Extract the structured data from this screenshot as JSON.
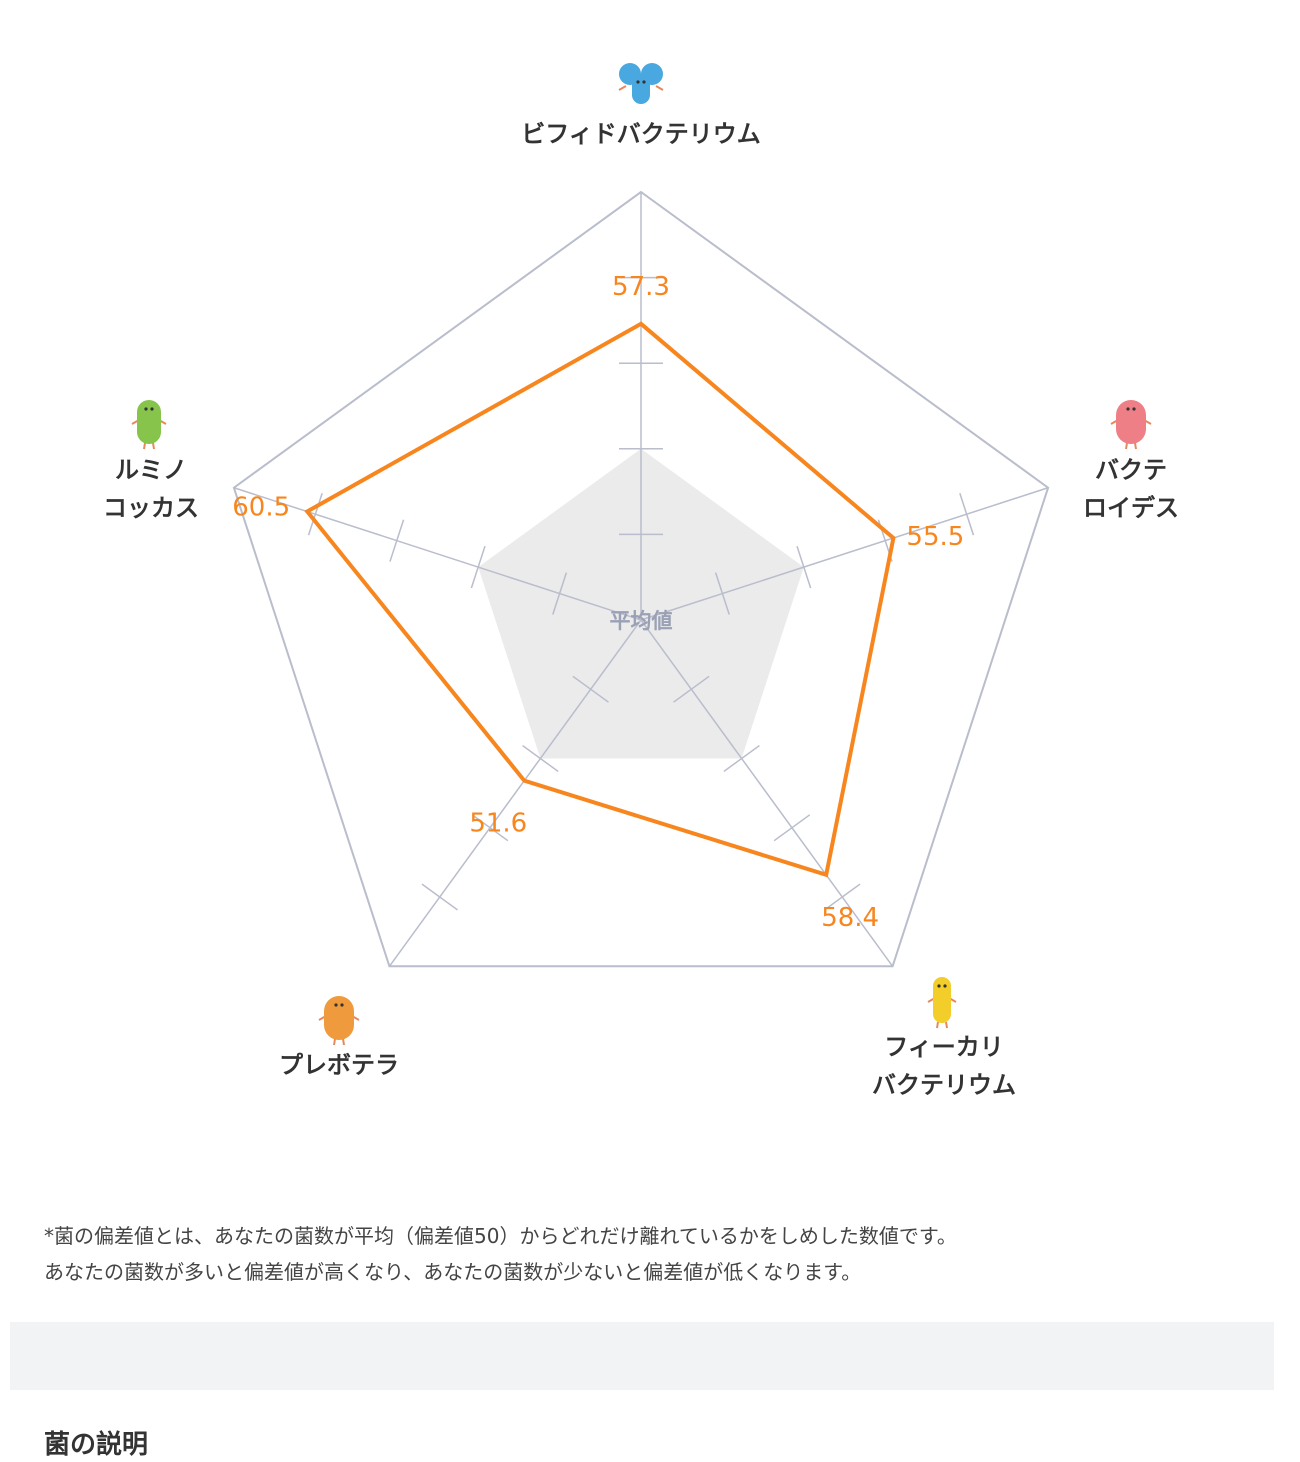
{
  "chart_data": {
    "type": "radar",
    "center_label": "平均値",
    "baseline_value": 50,
    "axes": [
      {
        "name": "ビフィドバクテリウム",
        "lines": [
          "ビフィドバクテリウム"
        ],
        "value": 57.3,
        "value_label": "57.3",
        "icon": "blue-bacterium-icon"
      },
      {
        "name": "バクテロイデス",
        "lines": [
          "バクテ",
          "ロイデス"
        ],
        "value": 55.5,
        "value_label": "55.5",
        "icon": "red-bacterium-icon"
      },
      {
        "name": "フィーカリバクテリウム",
        "lines": [
          "フィーカリ",
          "バクテリウム"
        ],
        "value": 58.4,
        "value_label": "58.4",
        "icon": "yellow-bacterium-icon"
      },
      {
        "name": "プレボテラ",
        "lines": [
          "プレボテラ"
        ],
        "value": 51.6,
        "value_label": "51.6",
        "icon": "orange-bacterium-icon"
      },
      {
        "name": "ルミノコッカス",
        "lines": [
          "ルミノ",
          "コッカス"
        ],
        "value": 60.5,
        "value_label": "60.5",
        "icon": "green-bacterium-icon"
      }
    ],
    "colors": {
      "series": "#f7861f",
      "average_fill": "#ebebeb",
      "grid": "#b9bdcc",
      "icons": {
        "blue-bacterium-icon": "#4aa8e0",
        "red-bacterium-icon": "#ee7f86",
        "yellow-bacterium-icon": "#f3cd2a",
        "orange-bacterium-icon": "#ef9b3d",
        "green-bacterium-icon": "#86c44c"
      }
    }
  },
  "footnote": {
    "line1": "*菌の偏差値とは、あなたの菌数が平均（偏差値50）からどれだけ離れているかをしめした数値です。",
    "line2": "あなたの菌数が多いと偏差値が高くなり、あなたの菌数が少ないと偏差値が低くなります。"
  },
  "section": {
    "title": "菌の説明"
  }
}
